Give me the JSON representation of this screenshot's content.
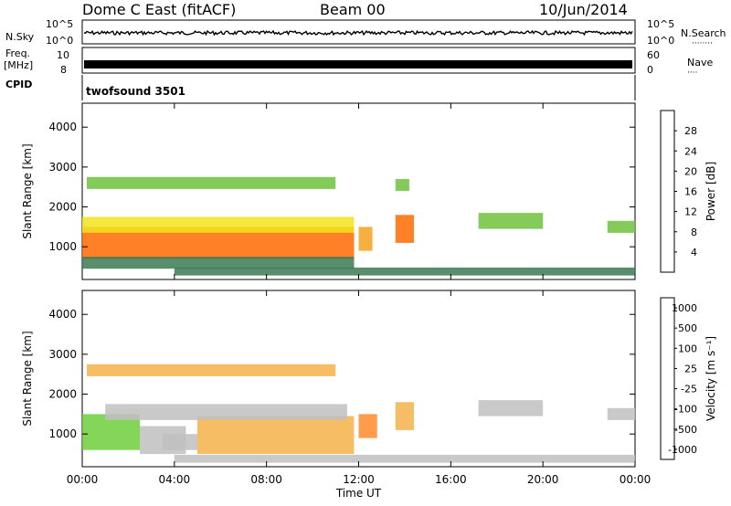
{
  "header": {
    "station": "Dome C East (fitACF)",
    "beam": "Beam 00",
    "date": "10/Jun/2014"
  },
  "strip_panels": {
    "nsky": {
      "label": "N.Sky",
      "ticks": [
        "10^5",
        "10^0"
      ]
    },
    "nsearch": {
      "label": "N.Search",
      "marker": "········"
    },
    "freq": {
      "label_line1": "Freq.",
      "label_line2": "[MHz]",
      "ticks": [
        "10",
        "8"
      ]
    },
    "nave": {
      "label": "Nave",
      "ticks": [
        "60",
        "0"
      ],
      "marker": "····"
    },
    "cpid": {
      "label": "CPID",
      "program": "twofsound 3501"
    }
  },
  "colors": {
    "power_scale": [
      "#0000ff",
      "#2c4fa6",
      "#3c7a52",
      "#6fc23c",
      "#f5e21e",
      "#f5a21e",
      "#ff6a00",
      "#ff0000"
    ],
    "velocity_scale": [
      "#ff0000",
      "#ff6a00",
      "#ff8a2a",
      "#f5b24a",
      "#c0c0c0",
      "#6fcf3c",
      "#3c7a52",
      "#2c4fa6"
    ]
  },
  "chart_data": [
    {
      "type": "heatmap",
      "title": "",
      "xlabel": "",
      "ylabel": "Slant Range [km]",
      "x_ticks": [
        "00:00",
        "04:00",
        "08:00",
        "12:00",
        "16:00",
        "20:00",
        "00:00"
      ],
      "xlim": [
        0,
        24
      ],
      "ylim": [
        180,
        4600
      ],
      "y_ticks": [
        1000,
        2000,
        3000,
        4000
      ],
      "colorbar": {
        "label": "Power [dB]",
        "ticks": [
          "4",
          "8",
          "12",
          "16",
          "20",
          "24",
          "28"
        ],
        "range": [
          0,
          30
        ]
      },
      "regions": [
        {
          "x": [
            0.0,
            11.8
          ],
          "y": [
            700,
            1500
          ],
          "value": 26
        },
        {
          "x": [
            0.0,
            11.8
          ],
          "y": [
            1350,
            1750
          ],
          "value": 16
        },
        {
          "x": [
            0.0,
            11.8
          ],
          "y": [
            450,
            750
          ],
          "value": 10
        },
        {
          "x": [
            12.0,
            12.6
          ],
          "y": [
            900,
            1500
          ],
          "value": 22
        },
        {
          "x": [
            13.6,
            14.4
          ],
          "y": [
            1100,
            1800
          ],
          "value": 24
        },
        {
          "x": [
            13.6,
            14.2
          ],
          "y": [
            2400,
            2700
          ],
          "value": 14
        },
        {
          "x": [
            17.2,
            20.0
          ],
          "y": [
            1450,
            1850
          ],
          "value": 12
        },
        {
          "x": [
            22.8,
            24.0
          ],
          "y": [
            1350,
            1650
          ],
          "value": 12
        },
        {
          "x": [
            0.2,
            11.0
          ],
          "y": [
            2450,
            2750
          ],
          "value": 14
        },
        {
          "x": [
            4.0,
            24.0
          ],
          "y": [
            280,
            480
          ],
          "value": 8
        }
      ]
    },
    {
      "type": "heatmap",
      "title": "",
      "xlabel": "Time UT",
      "ylabel": "Slant Range [km]",
      "x_ticks": [
        "00:00",
        "04:00",
        "08:00",
        "12:00",
        "16:00",
        "20:00",
        "00:00"
      ],
      "xlim": [
        0,
        24
      ],
      "ylim": [
        180,
        4600
      ],
      "y_ticks": [
        1000,
        2000,
        3000,
        4000
      ],
      "colorbar": {
        "label": "Velocity [m s⁻¹]",
        "ticks": [
          "-1000",
          "-500",
          "-100",
          "-25",
          "25",
          "100",
          "500",
          "1000"
        ],
        "range": [
          -1200,
          1200
        ]
      },
      "regions": [
        {
          "x": [
            0.0,
            2.5
          ],
          "y": [
            600,
            1500
          ],
          "value": 300
        },
        {
          "x": [
            2.5,
            4.5
          ],
          "y": [
            500,
            1200
          ],
          "value": 150
        },
        {
          "x": [
            3.5,
            5.0
          ],
          "y": [
            600,
            1000
          ],
          "value": 60
        },
        {
          "x": [
            5.0,
            11.8
          ],
          "y": [
            500,
            1450
          ],
          "value": -150
        },
        {
          "x": [
            1.0,
            11.5
          ],
          "y": [
            1350,
            1750
          ],
          "value": 0
        },
        {
          "x": [
            12.0,
            12.8
          ],
          "y": [
            900,
            1500
          ],
          "value": -400
        },
        {
          "x": [
            13.6,
            14.4
          ],
          "y": [
            1100,
            1800
          ],
          "value": -150
        },
        {
          "x": [
            17.2,
            20.0
          ],
          "y": [
            1450,
            1850
          ],
          "value": 80
        },
        {
          "x": [
            22.8,
            24.0
          ],
          "y": [
            1350,
            1650
          ],
          "value": 80
        },
        {
          "x": [
            0.2,
            11.0
          ],
          "y": [
            2450,
            2750
          ],
          "value": -40
        },
        {
          "x": [
            4.0,
            24.0
          ],
          "y": [
            280,
            480
          ],
          "value": 60
        }
      ]
    }
  ]
}
